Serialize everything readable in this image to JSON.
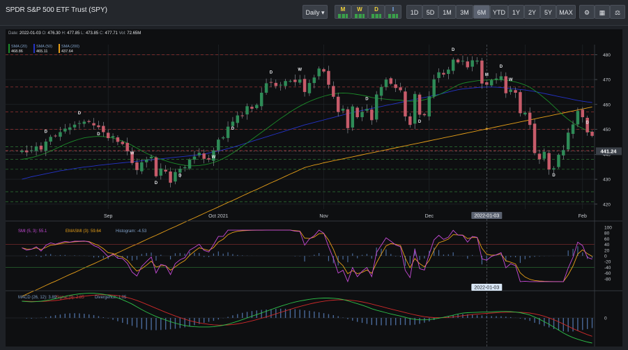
{
  "title": "SPDR S&P 500 ETF Trust (SPY)",
  "toolbar": {
    "interval": "Daily",
    "indicator_buttons": [
      "M",
      "W",
      "D",
      "I"
    ],
    "ranges": [
      "1D",
      "5D",
      "1M",
      "3M",
      "6M",
      "YTD",
      "1Y",
      "2Y",
      "5Y",
      "MAX"
    ],
    "active_range": "6M",
    "icons": [
      "settings-icon",
      "calculator-icon",
      "scale-icon"
    ]
  },
  "ohlc": {
    "date_label": "Date:",
    "date": "2022-01-03",
    "o_label": "O:",
    "o": "476.30",
    "h_label": "H:",
    "h": "477.85",
    "l_label": "L:",
    "l": "473.85",
    "c_label": "C:",
    "c": "477.71",
    "vol_label": "Vol:",
    "vol": "72.65M"
  },
  "sma_legend": [
    {
      "label": "SMA (20)",
      "value": "468.86",
      "color": "#1c8c2a"
    },
    {
      "label": "SMA (50)",
      "value": "465.11",
      "color": "#2433c8"
    },
    {
      "label": "SMA (200)",
      "value": "437.64",
      "color": "#e8a018"
    }
  ],
  "chart_data": [
    {
      "type": "candlestick",
      "ylim": [
        418,
        484
      ],
      "yticks": [
        420,
        430,
        440,
        450,
        460,
        470,
        480
      ],
      "x_ticks": [
        "Sep",
        "Oct 2021",
        "Nov",
        "Dec",
        "2022-01-03",
        "Feb"
      ],
      "current_price_label": "441.24",
      "crosshair_label": "2022-01-03",
      "colors": {
        "up": "#2e8b57",
        "down": "#c75b6a",
        "sma20": "#1c8c2a",
        "sma50": "#2433c8",
        "sma200": "#e8a018"
      },
      "resistance_red": [
        480,
        467,
        457,
        450,
        441.5
      ],
      "support_green": [
        443,
        438,
        434,
        425,
        421
      ],
      "marker_labels": [
        "D",
        "W",
        "M"
      ],
      "close": [
        441.5,
        440.8,
        441.6,
        443.2,
        441.9,
        445.1,
        447.0,
        447.3,
        448.9,
        450.3,
        450.8,
        451.9,
        452.5,
        453.1,
        453.0,
        451.6,
        450.9,
        448.9,
        446.5,
        447.3,
        445.0,
        444.1,
        441.2,
        436.5,
        433.7,
        436.8,
        437.9,
        439.0,
        431.2,
        434.3,
        433.1,
        428.6,
        432.9,
        434.2,
        434.8,
        437.9,
        439.1,
        440.6,
        438.2,
        437.9,
        441.6,
        445.9,
        446.8,
        451.1,
        453.1,
        455.6,
        455.5,
        459.3,
        458.3,
        459.8,
        464.7,
        468.5,
        468.9,
        467.4,
        467.9,
        469.4,
        469.4,
        469.0,
        470.0,
        465.0,
        468.6,
        470.8,
        474.4,
        473.2,
        467.9,
        463.1,
        457.0,
        458.3,
        450.5,
        459.2,
        454.9,
        457.0,
        458.2,
        453.7,
        464.0,
        467.0,
        470.0,
        468.3,
        466.6,
        465.7,
        455.2,
        451.8,
        464.2,
        455.9,
        455.7,
        463.2,
        470.1,
        472.9,
        472.0,
        474.0,
        478.0,
        476.9,
        477.5,
        474.9,
        477.7,
        477.6,
        468.4,
        467.9,
        469.7,
        470.4,
        471.3,
        464.5,
        466.0,
        464.7,
        456.5,
        456.7,
        451.8,
        440.5,
        438.0,
        441.0,
        433.9,
        434.4,
        439.8,
        441.7,
        448.7,
        452.0,
        457.4,
        454.9,
        448.8,
        447.4
      ],
      "sma20": [
        438,
        438.3,
        438.7,
        439.2,
        439.8,
        440.5,
        441.3,
        442.2,
        443.1,
        444,
        444.8,
        445.5,
        446.1,
        446.6,
        446.9,
        447.1,
        447.2,
        447.1,
        446.9,
        446.5,
        446,
        445.3,
        444.5,
        443.6,
        442.5,
        441.4,
        440.4,
        439.5,
        438.7,
        438,
        437.4,
        436.8,
        436.3,
        435.9,
        435.6,
        435.4,
        435.4,
        435.5,
        435.8,
        436.2,
        436.7,
        437.4,
        438.3,
        439.3,
        440.5,
        441.8,
        443.2,
        444.6,
        446,
        447.4,
        448.8,
        450.2,
        451.6,
        453,
        454.4,
        455.7,
        457,
        458.2,
        459.3,
        460.3,
        461.2,
        462,
        462.7,
        463.3,
        463.8,
        464.2,
        464.5,
        464.6,
        464.5,
        464.3,
        464,
        463.7,
        463.3,
        462.8,
        462.5,
        462.3,
        462.1,
        461.9,
        461.8,
        461.7,
        461.5,
        461.3,
        461.3,
        461.5,
        461.9,
        462.4,
        463.1,
        463.9,
        464.8,
        465.8,
        466.8,
        467.8,
        468.5,
        468.9,
        469.2,
        469.5,
        469.7,
        469.8,
        469.9,
        469.9,
        469.9,
        469.7,
        469.4,
        469,
        468.5,
        467.8,
        466.9,
        465.6,
        464.2,
        462.6,
        461,
        459.2,
        457.4,
        455.6,
        454,
        452.6,
        451.4,
        450.4,
        449.5,
        448.8
      ],
      "sma50": [
        430,
        430.5,
        431,
        431.4,
        431.8,
        432.2,
        432.6,
        433,
        433.4,
        433.7,
        434,
        434.3,
        434.6,
        434.9,
        435.1,
        435.3,
        435.6,
        435.8,
        436,
        436.2,
        436.4,
        436.6,
        436.8,
        437,
        437.2,
        437.4,
        437.6,
        437.8,
        438,
        438.2,
        438.4,
        438.6,
        438.8,
        439,
        439.2,
        439.4,
        439.6,
        439.8,
        440.1,
        440.5,
        440.9,
        441.3,
        441.8,
        442.3,
        442.8,
        443.4,
        444,
        444.6,
        445.2,
        445.8,
        446.4,
        447,
        447.6,
        448.2,
        448.8,
        449.4,
        450,
        450.6,
        451.2,
        451.8,
        452.3,
        452.8,
        453.3,
        453.8,
        454.3,
        454.8,
        455.3,
        455.8,
        456.3,
        456.8,
        457.2,
        457.6,
        458,
        458.4,
        458.8,
        459.2,
        459.6,
        460,
        460.4,
        460.8,
        461.2,
        461.6,
        462,
        462.4,
        462.8,
        463.2,
        463.6,
        464,
        464.5,
        465,
        465.5,
        465.9,
        466.2,
        466.4,
        466.6,
        466.8,
        466.9,
        467,
        467,
        466.9,
        466.8,
        466.6,
        466.4,
        466.2,
        466,
        465.8,
        465.5,
        465.2,
        464.8,
        464.4,
        464,
        463.6,
        463.2,
        462.8,
        462.4,
        462,
        461.6,
        461.3,
        461,
        460.8
      ],
      "sma200": [
        383,
        383.9,
        384.8,
        385.6,
        386.5,
        387.4,
        388.3,
        389.1,
        390,
        390.9,
        391.8,
        392.6,
        393.5,
        394.4,
        395.3,
        396.1,
        397,
        397.9,
        398.8,
        399.7,
        400.5,
        401.4,
        402.3,
        403.2,
        404,
        404.9,
        405.8,
        406.7,
        407.5,
        408.4,
        409.3,
        410.2,
        411,
        411.9,
        412.8,
        413.7,
        414.5,
        415.4,
        416.3,
        417.2,
        418,
        418.9,
        419.8,
        420.7,
        421.5,
        422.4,
        423.3,
        424.2,
        425.1,
        425.9,
        426.8,
        427.7,
        428.6,
        429.4,
        430.3,
        431.2,
        432.1,
        432.9,
        433.8,
        434.7,
        435.2,
        435.7,
        436.1,
        436.6,
        437,
        437.4,
        437.8,
        438.2,
        438.6,
        439,
        439.4,
        439.8,
        440.2,
        440.6,
        441,
        441.4,
        441.8,
        442.2,
        442.6,
        443,
        443.4,
        443.8,
        444.2,
        444.6,
        445,
        445.4,
        445.8,
        446.2,
        446.6,
        447,
        447.4,
        447.8,
        448.2,
        448.6,
        449,
        449.4,
        449.8,
        450.2,
        450.6,
        451,
        451.4,
        451.8,
        452.2,
        452.6,
        453,
        453.4,
        453.8,
        454.2,
        454.6,
        455,
        455.4,
        455.8,
        456.2,
        456.6,
        457,
        457.4,
        457.8,
        458.2,
        458.6,
        459
      ]
    },
    {
      "type": "line",
      "title": "SMI (5, 3)",
      "legend_text": {
        "smi": "SMI (5, 3): 55.1",
        "emasmi": "EMASMI (3): 59.64",
        "histogram": "Histogram: -4.53"
      },
      "ylim": [
        -100,
        100
      ],
      "yticks": [
        100,
        80,
        60,
        40,
        20,
        0,
        -20,
        -40,
        -60,
        -80
      ],
      "levels": [
        40,
        -40
      ],
      "series_colors": {
        "smi": "#c74bd8",
        "emasmi": "#e8a018",
        "histogram": "#4a6a9a"
      }
    },
    {
      "type": "line",
      "title": "MACD (26, 12)",
      "legend_text": {
        "macd": "MACD (26, 12): 3.89",
        "signal": "Signal (9): 2.85",
        "divergence": "Divergence: 1.05"
      },
      "yticks": [
        0
      ],
      "crosshair_label": "2022-01-03",
      "series_colors": {
        "macd": "#2ec34a",
        "signal": "#d02a2a",
        "divergence": "#4a6a9a"
      }
    }
  ]
}
